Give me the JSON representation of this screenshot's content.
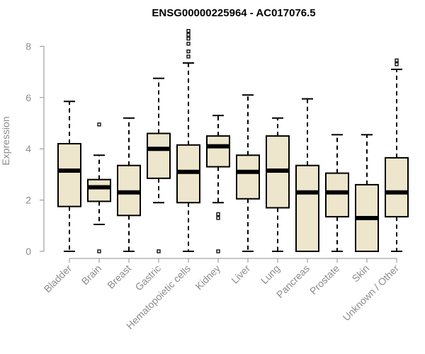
{
  "chart_data": {
    "type": "box",
    "title": "ENSG00000225964 - AC017076.5",
    "ylabel": "Expression",
    "ylim": [
      0,
      8.6
    ],
    "yticks": [
      0,
      2,
      4,
      6,
      8
    ],
    "box_fill": "#ede6cc",
    "box_stroke": "#000000",
    "axis_color": "#8c8c8c",
    "categories": [
      "Bladder",
      "Brain",
      "Breast",
      "Gastric",
      "Hematopoietic cells",
      "Kidney",
      "Liver",
      "Lung",
      "Pancreas",
      "Prostate",
      "Skin",
      "Unknown / Other"
    ],
    "boxes": [
      {
        "min": 0.0,
        "q1": 1.75,
        "median": 3.15,
        "q3": 4.2,
        "max": 5.85,
        "outliers": []
      },
      {
        "min": 1.05,
        "q1": 1.95,
        "median": 2.5,
        "q3": 2.8,
        "max": 3.75,
        "outliers": [
          0.0,
          4.95
        ]
      },
      {
        "min": 0.0,
        "q1": 1.4,
        "median": 2.3,
        "q3": 3.35,
        "max": 5.2,
        "outliers": []
      },
      {
        "min": 1.9,
        "q1": 2.85,
        "median": 4.0,
        "q3": 4.6,
        "max": 6.75,
        "outliers": [
          0.0
        ]
      },
      {
        "min": 0.0,
        "q1": 1.9,
        "median": 3.1,
        "q3": 4.15,
        "max": 7.35,
        "outliers": [
          7.6,
          7.8,
          8.1,
          8.3,
          8.45,
          8.6
        ]
      },
      {
        "min": 1.9,
        "q1": 3.3,
        "median": 4.1,
        "q3": 4.5,
        "max": 5.3,
        "outliers": [
          0.0,
          1.3,
          1.45
        ]
      },
      {
        "min": 0.0,
        "q1": 2.05,
        "median": 3.1,
        "q3": 3.75,
        "max": 6.1,
        "outliers": []
      },
      {
        "min": 0.0,
        "q1": 1.7,
        "median": 3.15,
        "q3": 4.5,
        "max": 5.2,
        "outliers": []
      },
      {
        "min": 0.0,
        "q1": 0.0,
        "median": 2.3,
        "q3": 3.35,
        "max": 5.95,
        "outliers": []
      },
      {
        "min": 0.0,
        "q1": 1.35,
        "median": 2.3,
        "q3": 3.05,
        "max": 4.55,
        "outliers": []
      },
      {
        "min": 0.0,
        "q1": 0.0,
        "median": 1.3,
        "q3": 2.6,
        "max": 4.55,
        "outliers": []
      },
      {
        "min": 0.0,
        "q1": 1.35,
        "median": 2.3,
        "q3": 3.65,
        "max": 7.1,
        "outliers": [
          7.3,
          7.45
        ]
      }
    ]
  }
}
